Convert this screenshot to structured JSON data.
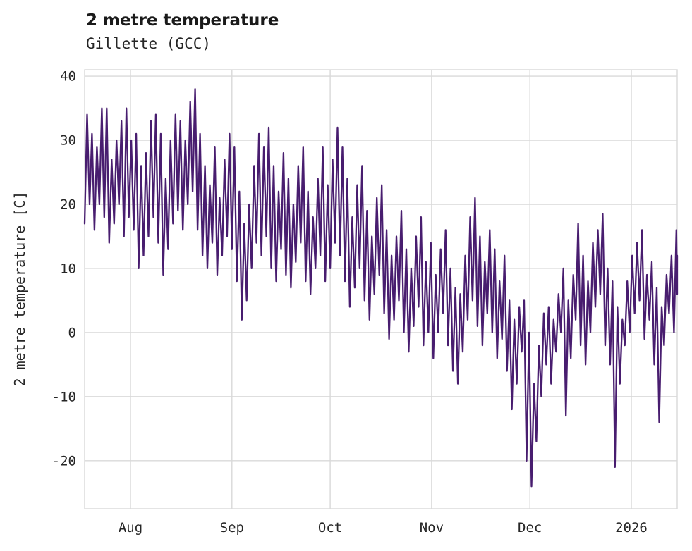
{
  "header": {
    "title": "2 metre temperature",
    "subtitle": "Gillette (GCC)"
  },
  "chart_data": {
    "type": "line",
    "title": "2 metre temperature",
    "subtitle": "Gillette (GCC)",
    "xlabel": "",
    "ylabel": "2 metre temperature [C]",
    "grid": true,
    "legend": false,
    "colors": {
      "line": "#481d6f",
      "grid": "#d9d9d9",
      "text": "#262626",
      "background": "#ffffff"
    },
    "xlim": [
      0,
      181
    ],
    "ylim": [
      -27.5,
      41
    ],
    "x_unit": "days from start of plotted series (series begins mid-July, ends mid-January)",
    "yticks": [
      -20,
      -10,
      0,
      10,
      20,
      30,
      40
    ],
    "xticks": [
      {
        "pos": 14,
        "label": "Aug"
      },
      {
        "pos": 45,
        "label": "Sep"
      },
      {
        "pos": 75,
        "label": "Oct"
      },
      {
        "pos": 106,
        "label": "Nov"
      },
      {
        "pos": 136,
        "label": "Dec"
      },
      {
        "pos": 167,
        "label": "2026"
      }
    ],
    "series": [
      {
        "name": "2 metre temperature",
        "points_format": "[day, daily_min_C, daily_max_C] — renderer zigzags min→max to depict diurnal swings",
        "points": [
          [
            0,
            17,
            34
          ],
          [
            1.5,
            20,
            31
          ],
          [
            3,
            16,
            29
          ],
          [
            4.5,
            20,
            35
          ],
          [
            6,
            18,
            35
          ],
          [
            7.5,
            14,
            27
          ],
          [
            9,
            17,
            30
          ],
          [
            10.5,
            20,
            33
          ],
          [
            12,
            15,
            35
          ],
          [
            13.5,
            18,
            30
          ],
          [
            15,
            16,
            31
          ],
          [
            16.5,
            10,
            26
          ],
          [
            18,
            12,
            28
          ],
          [
            19.5,
            15,
            33
          ],
          [
            21,
            18,
            34
          ],
          [
            22.5,
            14,
            31
          ],
          [
            24,
            9,
            24
          ],
          [
            25.5,
            13,
            30
          ],
          [
            27,
            17,
            34
          ],
          [
            28.5,
            19,
            33
          ],
          [
            30,
            16,
            30
          ],
          [
            31.5,
            20,
            36
          ],
          [
            33,
            22,
            38
          ],
          [
            34.5,
            16,
            31
          ],
          [
            36,
            12,
            26
          ],
          [
            37.5,
            10,
            23
          ],
          [
            39,
            14,
            29
          ],
          [
            40.5,
            9,
            21
          ],
          [
            42,
            12,
            27
          ],
          [
            43.5,
            15,
            31
          ],
          [
            45,
            13,
            29
          ],
          [
            46.5,
            8,
            22
          ],
          [
            48,
            2,
            17
          ],
          [
            49.5,
            5,
            20
          ],
          [
            51,
            10,
            26
          ],
          [
            52.5,
            14,
            31
          ],
          [
            54,
            12,
            29
          ],
          [
            55.5,
            15,
            32
          ],
          [
            57,
            10,
            26
          ],
          [
            58.5,
            8,
            22
          ],
          [
            60,
            13,
            28
          ],
          [
            61.5,
            9,
            24
          ],
          [
            63,
            7,
            20
          ],
          [
            64.5,
            11,
            26
          ],
          [
            66,
            14,
            29
          ],
          [
            67.5,
            8,
            22
          ],
          [
            69,
            6,
            18
          ],
          [
            70.5,
            10,
            24
          ],
          [
            72,
            12,
            29
          ],
          [
            73.5,
            8,
            23
          ],
          [
            75,
            10,
            27
          ],
          [
            76.5,
            14,
            32
          ],
          [
            78,
            12,
            29
          ],
          [
            79.5,
            8,
            24
          ],
          [
            81,
            4,
            18
          ],
          [
            82.5,
            7,
            23
          ],
          [
            84,
            10,
            26
          ],
          [
            85.5,
            5,
            19
          ],
          [
            87,
            2,
            15
          ],
          [
            88.5,
            6,
            21
          ],
          [
            90,
            9,
            23
          ],
          [
            91.5,
            3,
            16
          ],
          [
            93,
            -1,
            12
          ],
          [
            94.5,
            2,
            15
          ],
          [
            96,
            5,
            19
          ],
          [
            97.5,
            0,
            13
          ],
          [
            99,
            -3,
            10
          ],
          [
            100.5,
            1,
            15
          ],
          [
            102,
            4,
            18
          ],
          [
            103.5,
            -2,
            11
          ],
          [
            105,
            0,
            14
          ],
          [
            106.5,
            -4,
            9
          ],
          [
            108,
            0,
            13
          ],
          [
            109.5,
            3,
            16
          ],
          [
            111,
            -2,
            10
          ],
          [
            112.5,
            -6,
            7
          ],
          [
            114,
            -8,
            6
          ],
          [
            115.5,
            -3,
            12
          ],
          [
            117,
            2,
            18
          ],
          [
            118.5,
            5,
            21
          ],
          [
            120,
            1,
            15
          ],
          [
            121.5,
            -2,
            11
          ],
          [
            123,
            3,
            16
          ],
          [
            124.5,
            0,
            13
          ],
          [
            126,
            -4,
            8
          ],
          [
            127.5,
            -1,
            12
          ],
          [
            129,
            -6,
            5
          ],
          [
            130.5,
            -12,
            2
          ],
          [
            132,
            -8,
            4
          ],
          [
            133.5,
            -3,
            5
          ],
          [
            135,
            -20,
            0
          ],
          [
            136.5,
            -24,
            -8
          ],
          [
            138,
            -17,
            -2
          ],
          [
            139.5,
            -10,
            3
          ],
          [
            141,
            -5,
            4
          ],
          [
            142.5,
            -8,
            2
          ],
          [
            144,
            -3,
            6
          ],
          [
            145.5,
            0,
            10
          ],
          [
            147,
            -13,
            5
          ],
          [
            148.5,
            -4,
            9
          ],
          [
            150,
            2,
            17
          ],
          [
            151.5,
            -2,
            12
          ],
          [
            153,
            -5,
            8
          ],
          [
            154.5,
            0,
            14
          ],
          [
            156,
            4,
            16
          ],
          [
            157.5,
            6,
            18.5
          ],
          [
            159,
            -2,
            10
          ],
          [
            160.5,
            -5,
            8
          ],
          [
            162,
            -21,
            4
          ],
          [
            163.5,
            -8,
            2
          ],
          [
            165,
            -2,
            8
          ],
          [
            166.5,
            0,
            12
          ],
          [
            168,
            3,
            14
          ],
          [
            169.5,
            5,
            16
          ],
          [
            171,
            -1,
            9
          ],
          [
            172.5,
            2,
            11
          ],
          [
            174,
            -5,
            7
          ],
          [
            175.5,
            -14,
            4
          ],
          [
            177,
            -2,
            9
          ],
          [
            178.5,
            3,
            12
          ],
          [
            180,
            0,
            16
          ],
          [
            181,
            6,
            12
          ]
        ]
      }
    ]
  }
}
